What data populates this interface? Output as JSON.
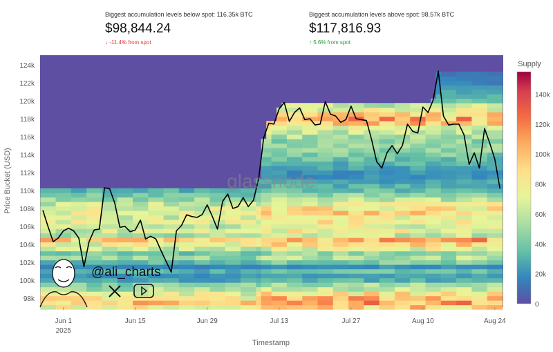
{
  "stats": [
    {
      "label": "Biggest accumulation levels below spot: 116.35k BTC",
      "value": "$98,844.24",
      "change": "↓ -11.4% from spot",
      "direction": "down"
    },
    {
      "label": "Biggest accumulation levels above spot: 98.57k BTC",
      "value": "$117,816.93",
      "change": "↑ 5.6% from spot",
      "direction": "up"
    }
  ],
  "watermark": "glassnode",
  "handle": "@ali_charts",
  "chart_data": {
    "type": "heatmap",
    "xlabel": "Timestamp",
    "ylabel": "Price Bucket (USD)",
    "x_ticks": [
      {
        "date": "2025-06-01",
        "label": "Jun 1",
        "sub": "2025"
      },
      {
        "date": "2025-06-15",
        "label": "Jun 15"
      },
      {
        "date": "2025-06-29",
        "label": "Jun 29"
      },
      {
        "date": "2025-07-13",
        "label": "Jul 13"
      },
      {
        "date": "2025-07-27",
        "label": "Jul 27"
      },
      {
        "date": "2025-08-10",
        "label": "Aug 10"
      },
      {
        "date": "2025-08-24",
        "label": "Aug 24"
      }
    ],
    "y_ticks": [
      98,
      100,
      102,
      104,
      106,
      108,
      110,
      112,
      114,
      116,
      118,
      120,
      122,
      124
    ],
    "y_tick_suffix": "k",
    "ylim": [
      96.9,
      125.1
    ],
    "x_start": "2025-05-28",
    "colorbar": {
      "title": "Supply",
      "ticks": [
        0,
        20,
        40,
        60,
        80,
        100,
        120,
        140
      ],
      "suffix": "k",
      "range": [
        0,
        155
      ],
      "stops": [
        "#5e4fa2",
        "#3288bd",
        "#66c2a5",
        "#abdda4",
        "#e6f598",
        "#fee08b",
        "#fdae61",
        "#f46d43",
        "#d53e4f",
        "#9e0142"
      ]
    },
    "bucket_start": 97.0,
    "bucket_step": 0.5,
    "bucket_supply_k": [
      90,
      110,
      95,
      80,
      60,
      50,
      30,
      25,
      35,
      20,
      40,
      55,
      45,
      70,
      85,
      105,
      60,
      75,
      70,
      80,
      75,
      85,
      80,
      70,
      55,
      45,
      35,
      30,
      25,
      20,
      20,
      25,
      30,
      35,
      40,
      45,
      50,
      45,
      55,
      60,
      70,
      90,
      100,
      85,
      75,
      60,
      40,
      30,
      25,
      20,
      15,
      15,
      12,
      10,
      8,
      4
    ],
    "price_series": {
      "name": "BTC price (k USD)",
      "values": [
        107.8,
        106,
        104.3,
        104.7,
        105.5,
        105.8,
        105.5,
        104.7,
        101.5,
        104.3,
        105.6,
        105.7,
        110.3,
        110.2,
        108.6,
        105.9,
        106.0,
        105.4,
        105.6,
        106.7,
        104.6,
        104.9,
        104.6,
        103.3,
        102.1,
        100.9,
        105.5,
        106.1,
        107.3,
        107.1,
        107.0,
        107.3,
        108.4,
        107.1,
        105.7,
        108.8,
        109.6,
        108.0,
        108.2,
        109.2,
        108.2,
        108.9,
        111.3,
        115.9,
        117.5,
        117.4,
        119.1,
        119.8,
        117.7,
        118.7,
        119.2,
        117.9,
        118.0,
        117.3,
        117.4,
        119.9,
        118.5,
        118.3,
        117.6,
        117.9,
        119.4,
        118.0,
        117.9,
        117.8,
        115.7,
        113.2,
        112.5,
        114.2,
        115.0,
        114.1,
        115.0,
        117.4,
        116.6,
        116.4,
        119.3,
        118.7,
        120.1,
        123.3,
        118.3,
        117.3,
        117.4,
        117.4,
        116.2,
        112.9,
        114.2,
        112.5,
        116.9,
        115.3,
        113.5,
        110.2
      ]
    }
  }
}
